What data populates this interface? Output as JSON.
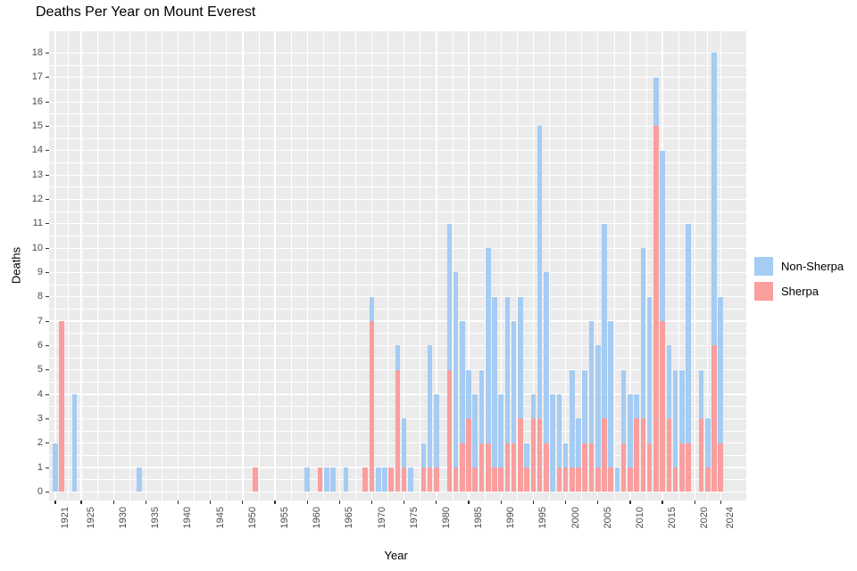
{
  "title": "Deaths Per Year on Mount Everest",
  "chart_data": {
    "type": "bar",
    "stacked": true,
    "title": "Deaths Per Year on Mount Everest",
    "xlabel": "Year",
    "ylabel": "Deaths",
    "ylim": [
      0,
      18
    ],
    "y_tick_step": 1,
    "grid": true,
    "legend_position": "right",
    "panel_bg": "#EBEBEB",
    "grid_color": "#FFFFFF",
    "tick_label_color": "#4D4D4D",
    "x_tick_labels": [
      "1921",
      "1925",
      "1930",
      "1935",
      "1940",
      "1945",
      "1950",
      "1955",
      "1960",
      "1965",
      "1970",
      "1975",
      "1980",
      "1985",
      "1990",
      "1995",
      "2000",
      "2005",
      "2010",
      "2015",
      "2020",
      "2024"
    ],
    "categories": [
      1921,
      1922,
      1924,
      1934,
      1952,
      1960,
      1962,
      1963,
      1964,
      1966,
      1969,
      1970,
      1971,
      1972,
      1973,
      1974,
      1975,
      1976,
      1978,
      1979,
      1980,
      1982,
      1983,
      1984,
      1985,
      1986,
      1987,
      1988,
      1989,
      1990,
      1991,
      1992,
      1993,
      1994,
      1995,
      1996,
      1997,
      1998,
      1999,
      2000,
      2001,
      2002,
      2003,
      2004,
      2005,
      2006,
      2007,
      2008,
      2009,
      2010,
      2011,
      2012,
      2013,
      2014,
      2015,
      2016,
      2017,
      2018,
      2019,
      2021,
      2022,
      2023,
      2024
    ],
    "series": [
      {
        "name": "Non-Sherpa",
        "color": "#A5CCF3",
        "values": [
          2,
          0,
          4,
          1,
          0,
          1,
          0,
          1,
          1,
          1,
          0,
          1,
          1,
          1,
          0,
          1,
          2,
          1,
          1,
          5,
          3,
          6,
          8,
          5,
          2,
          3,
          3,
          8,
          7,
          3,
          6,
          5,
          5,
          1,
          1,
          12,
          7,
          4,
          3,
          1,
          4,
          2,
          3,
          5,
          5,
          8,
          6,
          1,
          3,
          3,
          1,
          7,
          6,
          2,
          7,
          3,
          4,
          3,
          9,
          2,
          2,
          12,
          6
        ]
      },
      {
        "name": "Sherpa",
        "color": "#FA9E9E",
        "values": [
          0,
          7,
          0,
          0,
          1,
          0,
          1,
          0,
          0,
          0,
          1,
          7,
          0,
          0,
          1,
          5,
          1,
          0,
          1,
          1,
          1,
          5,
          1,
          2,
          3,
          1,
          2,
          2,
          1,
          1,
          2,
          2,
          3,
          1,
          3,
          3,
          2,
          0,
          1,
          1,
          1,
          1,
          2,
          2,
          1,
          3,
          1,
          0,
          2,
          1,
          3,
          3,
          2,
          15,
          7,
          3,
          1,
          2,
          2,
          3,
          1,
          6,
          2
        ]
      }
    ]
  }
}
